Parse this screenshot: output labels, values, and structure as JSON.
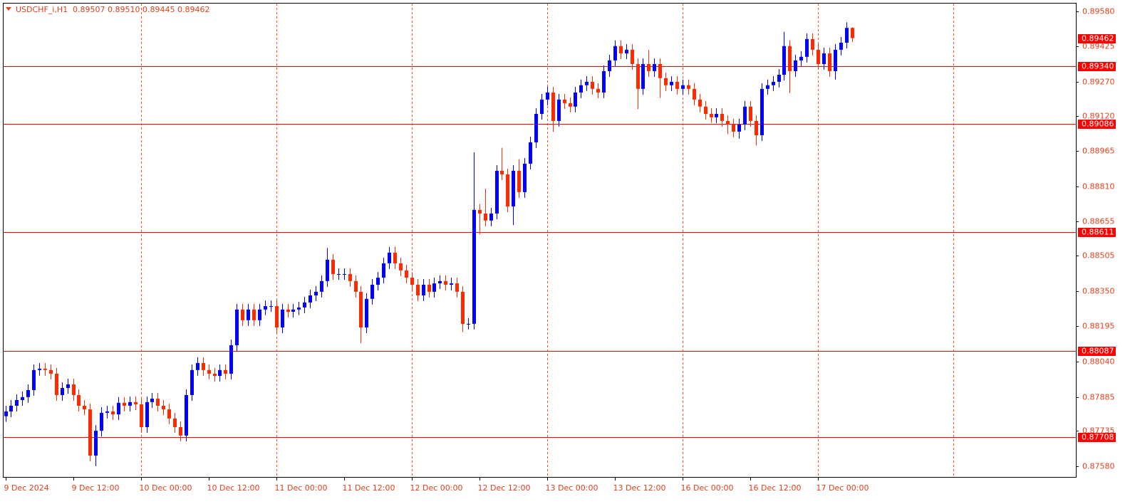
{
  "chart_data": {
    "type": "candlestick",
    "title": "USDCHF_i,H1",
    "header_values": [
      "0.89507",
      "0.89510",
      "0.89445",
      "0.89462"
    ],
    "up_color": "#0000ff",
    "down_color": "#ff2a00",
    "level_color": "#ff0000",
    "categories": [
      "9 Dec 2024",
      null,
      null,
      null,
      null,
      null,
      null,
      null,
      null,
      null,
      null,
      null,
      "9 Dec 12:00",
      null,
      null,
      null,
      null,
      null,
      null,
      null,
      null,
      null,
      null,
      null,
      "10 Dec 00:00",
      null,
      null,
      null,
      null,
      null,
      null,
      null,
      null,
      null,
      null,
      null,
      "10 Dec 12:00",
      null,
      null,
      null,
      null,
      null,
      null,
      null,
      null,
      null,
      null,
      null,
      "11 Dec 00:00",
      null,
      null,
      null,
      null,
      null,
      null,
      null,
      null,
      null,
      null,
      null,
      "11 Dec 12:00",
      null,
      null,
      null,
      null,
      null,
      null,
      null,
      null,
      null,
      null,
      null,
      "12 Dec 00:00",
      null,
      null,
      null,
      null,
      null,
      null,
      null,
      null,
      null,
      null,
      null,
      "12 Dec 12:00",
      null,
      null,
      null,
      null,
      null,
      null,
      null,
      null,
      null,
      null,
      null,
      "13 Dec 00:00",
      null,
      null,
      null,
      null,
      null,
      null,
      null,
      null,
      null,
      null,
      null,
      "13 Dec 12:00",
      null,
      null,
      null,
      null,
      null,
      null,
      null,
      null,
      null,
      null,
      null,
      "16 Dec 00:00",
      null,
      null,
      null,
      null,
      null,
      null,
      null,
      null,
      null,
      null,
      null,
      "16 Dec 12:00",
      null,
      null,
      null,
      null,
      null,
      null,
      null,
      null,
      null,
      null,
      null,
      "17 Dec 00:00",
      null,
      null,
      null,
      null,
      null,
      null
    ],
    "open": [
      0.878,
      0.87821,
      0.87846,
      0.87871,
      0.87884,
      0.87915,
      0.88003,
      0.88009,
      0.88003,
      0.87987,
      0.87893,
      0.87924,
      0.8794,
      0.87893,
      0.87846,
      0.8783,
      0.87627,
      0.87736,
      0.87815,
      0.87821,
      0.87808,
      0.87859,
      0.87846,
      0.87862,
      0.87852,
      0.87752,
      0.87862,
      0.87877,
      0.87846,
      0.8783,
      0.8779,
      0.87752,
      0.87715,
      0.87893,
      0.88003,
      0.88034,
      0.88003,
      0.87987,
      0.87977,
      0.88003,
      0.87987,
      0.88112,
      0.88269,
      0.88222,
      0.88269,
      0.88222,
      0.88269,
      0.88284,
      0.88284,
      0.8819,
      0.88269,
      0.88259,
      0.88269,
      0.88278,
      0.883,
      0.88331,
      0.88347,
      0.88394,
      0.88488,
      0.88425,
      0.88425,
      0.88425,
      0.88394,
      0.88347,
      0.8819,
      0.88316,
      0.88378,
      0.88409,
      0.88472,
      0.88519,
      0.88472,
      0.88441,
      0.88409,
      0.88378,
      0.88331,
      0.88378,
      0.88347,
      0.88384,
      0.88394,
      0.88378,
      0.88384,
      0.88347,
      0.88206,
      0.88206,
      0.88707,
      0.88691,
      0.8866,
      0.88691,
      0.88879,
      0.88863,
      0.88722,
      0.88879,
      0.88785,
      0.8891,
      0.89004,
      0.89129,
      0.89192,
      0.89223,
      0.89098,
      0.89192,
      0.89176,
      0.89161,
      0.89223,
      0.89255,
      0.8927,
      0.89239,
      0.89223,
      0.89317,
      0.89364,
      0.89427,
      0.89395,
      0.89411,
      0.89348,
      0.89239,
      0.89348,
      0.89317,
      0.89348,
      0.89286,
      0.89255,
      0.8927,
      0.89239,
      0.89255,
      0.89239,
      0.89192,
      0.89161,
      0.89129,
      0.89114,
      0.89129,
      0.89098,
      0.89082,
      0.89051,
      0.89082,
      0.89161,
      0.89098,
      0.89035,
      0.89239,
      0.89255,
      0.8927,
      0.89301,
      0.89427,
      0.89317,
      0.89364,
      0.8938,
      0.89458,
      0.89411,
      0.89348,
      0.89395,
      0.89317,
      0.89411,
      0.89442,
      0.89507
    ],
    "high": [
      0.87846,
      0.87871,
      0.87896,
      0.87909,
      0.8794,
      0.88028,
      0.88034,
      0.88034,
      0.88028,
      0.88012,
      0.87949,
      0.87965,
      0.87965,
      0.87918,
      0.87871,
      0.87855,
      0.87761,
      0.8784,
      0.87846,
      0.87846,
      0.87884,
      0.87884,
      0.87887,
      0.87887,
      0.87877,
      0.87887,
      0.87902,
      0.87902,
      0.87871,
      0.87855,
      0.87815,
      0.87777,
      0.87918,
      0.88028,
      0.88059,
      0.88059,
      0.88028,
      0.88012,
      0.88028,
      0.88028,
      0.88137,
      0.88294,
      0.88294,
      0.88294,
      0.88294,
      0.88294,
      0.88309,
      0.88309,
      0.88309,
      0.88294,
      0.88294,
      0.88294,
      0.88303,
      0.88325,
      0.88356,
      0.88372,
      0.88419,
      0.8854,
      0.88513,
      0.8845,
      0.8845,
      0.8845,
      0.88419,
      0.88372,
      0.88341,
      0.88403,
      0.88434,
      0.88497,
      0.88544,
      0.88544,
      0.88497,
      0.88466,
      0.88434,
      0.88403,
      0.88403,
      0.88403,
      0.88409,
      0.88419,
      0.88419,
      0.88409,
      0.88409,
      0.88372,
      0.88231,
      0.8896,
      0.88732,
      0.888,
      0.88716,
      0.88904,
      0.8898,
      0.88888,
      0.88904,
      0.8893,
      0.88935,
      0.89029,
      0.89154,
      0.89217,
      0.89248,
      0.89248,
      0.89217,
      0.89217,
      0.89201,
      0.89248,
      0.8928,
      0.89295,
      0.89295,
      0.89264,
      0.89342,
      0.89389,
      0.89452,
      0.89452,
      0.89436,
      0.89436,
      0.89373,
      0.89373,
      0.8941,
      0.89373,
      0.89373,
      0.89311,
      0.89295,
      0.89295,
      0.8928,
      0.8928,
      0.89264,
      0.89217,
      0.89186,
      0.89154,
      0.89154,
      0.89154,
      0.89123,
      0.89107,
      0.89107,
      0.89186,
      0.89186,
      0.89123,
      0.89264,
      0.8928,
      0.89295,
      0.89326,
      0.8949,
      0.89452,
      0.89389,
      0.89405,
      0.89483,
      0.89483,
      0.89436,
      0.8942,
      0.8942,
      0.89436,
      0.89467,
      0.89532,
      0.8951
    ],
    "low": [
      0.87775,
      0.87796,
      0.87821,
      0.87846,
      0.87859,
      0.8789,
      0.87978,
      0.87978,
      0.87962,
      0.87868,
      0.87868,
      0.87899,
      0.87868,
      0.87821,
      0.87805,
      0.87602,
      0.8758,
      0.87711,
      0.8779,
      0.87783,
      0.87783,
      0.87821,
      0.87821,
      0.87827,
      0.87727,
      0.87727,
      0.87837,
      0.87821,
      0.87805,
      0.87765,
      0.87727,
      0.8769,
      0.8769,
      0.87868,
      0.87978,
      0.87978,
      0.87962,
      0.87952,
      0.87952,
      0.87962,
      0.87962,
      0.88087,
      0.88197,
      0.88197,
      0.88197,
      0.88197,
      0.88244,
      0.88259,
      0.88165,
      0.88165,
      0.88234,
      0.88234,
      0.88244,
      0.88253,
      0.88275,
      0.88306,
      0.88322,
      0.88369,
      0.884,
      0.884,
      0.884,
      0.88369,
      0.88322,
      0.8812,
      0.88165,
      0.88291,
      0.88353,
      0.88384,
      0.88447,
      0.88447,
      0.88416,
      0.88384,
      0.88353,
      0.88306,
      0.88306,
      0.88322,
      0.88322,
      0.88359,
      0.88353,
      0.88353,
      0.88322,
      0.8817,
      0.88181,
      0.88181,
      0.886,
      0.88635,
      0.88635,
      0.88666,
      0.88838,
      0.88697,
      0.8864,
      0.8876,
      0.8876,
      0.88885,
      0.88979,
      0.89104,
      0.89167,
      0.8905,
      0.89073,
      0.89151,
      0.89136,
      0.89136,
      0.89198,
      0.8923,
      0.89214,
      0.89198,
      0.89198,
      0.89292,
      0.89339,
      0.8937,
      0.8937,
      0.89323,
      0.8915,
      0.89214,
      0.89292,
      0.89292,
      0.892,
      0.8923,
      0.8923,
      0.89214,
      0.89214,
      0.89214,
      0.89167,
      0.89136,
      0.89104,
      0.89089,
      0.89089,
      0.89073,
      0.8904,
      0.89026,
      0.8902,
      0.89057,
      0.89073,
      0.8899,
      0.8901,
      0.89214,
      0.8923,
      0.89245,
      0.89276,
      0.8922,
      0.89292,
      0.89339,
      0.89355,
      0.89386,
      0.89323,
      0.89323,
      0.89292,
      0.8928,
      0.89386,
      0.89417,
      0.89445
    ],
    "close": [
      0.87821,
      0.87846,
      0.87871,
      0.87884,
      0.87915,
      0.88003,
      0.88009,
      0.88003,
      0.87987,
      0.87893,
      0.87924,
      0.8794,
      0.87893,
      0.87846,
      0.8783,
      0.87627,
      0.87736,
      0.87815,
      0.87821,
      0.87808,
      0.87859,
      0.87846,
      0.87862,
      0.87852,
      0.87752,
      0.87862,
      0.87877,
      0.87846,
      0.8783,
      0.8779,
      0.87752,
      0.87715,
      0.87893,
      0.88003,
      0.88034,
      0.88003,
      0.87987,
      0.87977,
      0.88003,
      0.87987,
      0.88112,
      0.88269,
      0.88222,
      0.88269,
      0.88222,
      0.88269,
      0.88284,
      0.88284,
      0.8819,
      0.88269,
      0.88259,
      0.88269,
      0.88278,
      0.883,
      0.88331,
      0.88347,
      0.88394,
      0.88488,
      0.88425,
      0.88425,
      0.88425,
      0.88394,
      0.88347,
      0.8819,
      0.88316,
      0.88378,
      0.88409,
      0.88472,
      0.88519,
      0.88472,
      0.88441,
      0.88409,
      0.88378,
      0.88331,
      0.88378,
      0.88347,
      0.88384,
      0.88394,
      0.88378,
      0.88384,
      0.88347,
      0.88206,
      0.88206,
      0.88707,
      0.88691,
      0.8866,
      0.88691,
      0.88879,
      0.88863,
      0.88722,
      0.88879,
      0.88785,
      0.8891,
      0.89004,
      0.89129,
      0.89192,
      0.89223,
      0.89098,
      0.89192,
      0.89176,
      0.89161,
      0.89223,
      0.89255,
      0.8927,
      0.89239,
      0.89223,
      0.89317,
      0.89364,
      0.89427,
      0.89395,
      0.89411,
      0.89348,
      0.89239,
      0.89348,
      0.89317,
      0.89348,
      0.89286,
      0.89255,
      0.8927,
      0.89239,
      0.89255,
      0.89239,
      0.89192,
      0.89161,
      0.89129,
      0.89114,
      0.89129,
      0.89098,
      0.89082,
      0.89051,
      0.89082,
      0.89161,
      0.89098,
      0.89035,
      0.89239,
      0.89255,
      0.8927,
      0.89301,
      0.89427,
      0.89317,
      0.89364,
      0.8938,
      0.89458,
      0.89411,
      0.89348,
      0.89395,
      0.89317,
      0.89411,
      0.89442,
      0.89507,
      0.89462
    ],
    "ylim": [
      0.87533,
      0.89614
    ],
    "yticks": [
      {
        "value": 0.8958,
        "label": "0.89580"
      },
      {
        "value": 0.89425,
        "label": "0.89425"
      },
      {
        "value": 0.8927,
        "label": "0.89270"
      },
      {
        "value": 0.8912,
        "label": "0.89120"
      },
      {
        "value": 0.88965,
        "label": "0.88965"
      },
      {
        "value": 0.8881,
        "label": "0.88810"
      },
      {
        "value": 0.88655,
        "label": "0.88655"
      },
      {
        "value": 0.88505,
        "label": "0.88505"
      },
      {
        "value": 0.8835,
        "label": "0.88350"
      },
      {
        "value": 0.88195,
        "label": "0.88195"
      },
      {
        "value": 0.8804,
        "label": "0.88040"
      },
      {
        "value": 0.87885,
        "label": "0.87885"
      },
      {
        "value": 0.87735,
        "label": "0.87735"
      },
      {
        "value": 0.8758,
        "label": "0.87580"
      }
    ],
    "hlines": [
      {
        "value": 0.8934,
        "label": "0.89340"
      },
      {
        "value": 0.89086,
        "label": "0.89086"
      },
      {
        "value": 0.88611,
        "label": "0.88611"
      },
      {
        "value": 0.88087,
        "label": "0.88087"
      },
      {
        "value": 0.87708,
        "label": "0.87708"
      }
    ],
    "last_price": {
      "value": 0.89462,
      "label": "0.89462"
    }
  }
}
